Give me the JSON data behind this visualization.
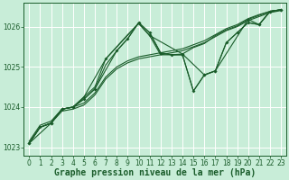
{
  "bg_color": "#c8edd8",
  "grid_color": "#aaddbb",
  "line_color": "#1a5c2a",
  "xlabel": "Graphe pression niveau de la mer (hPa)",
  "xlim": [
    -0.5,
    23.5
  ],
  "ylim": [
    1022.8,
    1026.6
  ],
  "yticks": [
    1023,
    1024,
    1025,
    1026
  ],
  "xticks": [
    0,
    1,
    2,
    3,
    4,
    5,
    6,
    7,
    8,
    9,
    10,
    11,
    12,
    13,
    14,
    15,
    16,
    17,
    18,
    19,
    20,
    21,
    22,
    23
  ],
  "lines": [
    {
      "x": [
        0,
        1,
        2,
        3,
        4,
        5,
        6,
        7,
        8,
        9,
        10,
        11,
        12,
        13,
        14,
        15,
        16,
        17,
        18,
        19,
        20,
        21,
        22,
        23
      ],
      "y": [
        1023.1,
        1023.5,
        1023.6,
        1023.9,
        1023.95,
        1024.05,
        1024.3,
        1024.7,
        1024.95,
        1025.1,
        1025.2,
        1025.25,
        1025.3,
        1025.35,
        1025.4,
        1025.5,
        1025.6,
        1025.75,
        1025.9,
        1026.0,
        1026.15,
        1026.25,
        1026.35,
        1026.4
      ]
    },
    {
      "x": [
        0,
        1,
        2,
        3,
        4,
        5,
        6,
        7,
        8,
        9,
        10,
        11,
        12,
        13,
        14,
        15,
        16,
        17,
        18,
        19,
        20,
        21,
        22,
        23
      ],
      "y": [
        1023.15,
        1023.55,
        1023.65,
        1023.95,
        1024.0,
        1024.1,
        1024.35,
        1024.75,
        1025.0,
        1025.15,
        1025.25,
        1025.3,
        1025.35,
        1025.4,
        1025.45,
        1025.55,
        1025.65,
        1025.8,
        1025.95,
        1026.05,
        1026.2,
        1026.3,
        1026.38,
        1026.42
      ]
    },
    {
      "x": [
        0,
        1,
        2,
        3,
        4,
        5,
        6,
        7,
        8,
        9,
        10,
        11,
        12,
        13,
        14,
        15,
        16,
        17,
        18,
        19,
        20,
        21,
        22,
        23
      ],
      "y": [
        1023.1,
        1023.5,
        1023.6,
        1023.95,
        1024.0,
        1024.2,
        1024.45,
        1025.05,
        1025.4,
        1025.7,
        1026.1,
        1025.85,
        1025.35,
        1025.3,
        1025.3,
        1024.4,
        1024.8,
        1024.9,
        1025.6,
        1025.85,
        1026.1,
        1026.05,
        1026.38,
        1026.42
      ]
    },
    {
      "x": [
        0,
        1,
        2,
        3,
        4,
        5,
        6,
        7,
        8,
        9,
        10,
        11,
        12,
        13,
        14,
        15,
        16,
        17,
        18,
        19,
        20,
        21,
        22,
        23
      ],
      "y": [
        1023.1,
        1023.5,
        1023.6,
        1023.95,
        1024.0,
        1024.25,
        1024.5,
        1025.2,
        1025.5,
        1025.8,
        1026.08,
        1025.78,
        1025.3,
        1025.3,
        1025.32,
        1025.48,
        1025.58,
        1025.78,
        1025.92,
        1026.02,
        1026.18,
        1026.28,
        1026.38,
        1026.42
      ]
    }
  ],
  "marker_lines": [
    {
      "x": [
        0,
        2,
        3,
        4,
        5,
        7,
        10,
        11,
        14,
        16,
        17,
        20,
        21,
        22,
        23
      ],
      "y": [
        1023.1,
        1023.6,
        1023.95,
        1024.0,
        1024.25,
        1025.2,
        1026.08,
        1025.78,
        1025.32,
        1024.8,
        1024.9,
        1026.18,
        1026.05,
        1026.38,
        1026.42
      ]
    },
    {
      "x": [
        0,
        1,
        2,
        3,
        4,
        5,
        6,
        8,
        9,
        10,
        11,
        12,
        13,
        14,
        15,
        16,
        17,
        18,
        19,
        20,
        21,
        22,
        23
      ],
      "y": [
        1023.1,
        1023.5,
        1023.6,
        1023.95,
        1024.0,
        1024.2,
        1024.45,
        1025.4,
        1025.7,
        1026.1,
        1025.85,
        1025.35,
        1025.3,
        1025.3,
        1024.4,
        1024.8,
        1024.9,
        1025.6,
        1025.85,
        1026.1,
        1026.05,
        1026.38,
        1026.42
      ]
    }
  ],
  "xlabel_fontsize": 7,
  "tick_fontsize": 5.5
}
